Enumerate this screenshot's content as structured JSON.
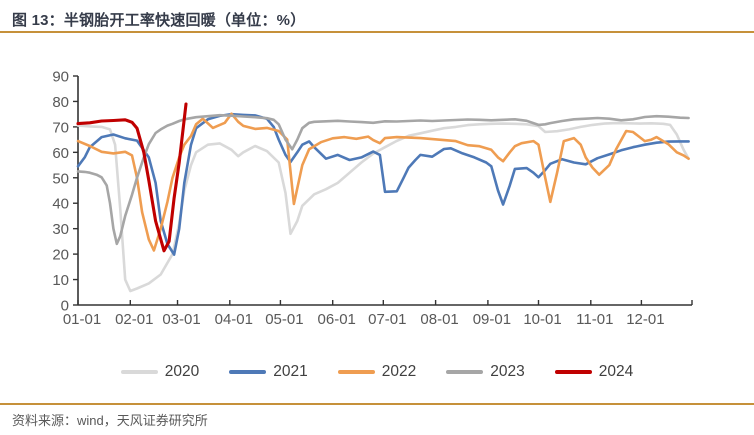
{
  "header": {
    "title": "图 13：半钢胎开工率快速回暖（单位：%）"
  },
  "footer": {
    "source": "资料来源：wind，天风证券研究所"
  },
  "colors": {
    "accent_rule": "#c6913a",
    "axis": "#333333",
    "tick_label": "#595959",
    "legend_text": "#404040"
  },
  "chart_data": {
    "type": "line",
    "title": "半钢胎开工率快速回暖",
    "unit": "%",
    "xlabel": "",
    "ylabel": "",
    "ylim": [
      0,
      90
    ],
    "ytick_step": 10,
    "grid": false,
    "legend_position": "bottom",
    "x_format": "day_of_year",
    "month_start_days": [
      1,
      32,
      60,
      91,
      121,
      152,
      182,
      213,
      244,
      274,
      305,
      335
    ],
    "x_tick_labels": [
      "01-01",
      "02-01",
      "03-01",
      "04-01",
      "05-01",
      "06-01",
      "07-01",
      "08-01",
      "09-01",
      "10-01",
      "11-01",
      "12-01"
    ],
    "series": [
      {
        "name": "2020",
        "color": "#d9d9d9",
        "points": [
          [
            1,
            70.5
          ],
          [
            8,
            70.2
          ],
          [
            15,
            70
          ],
          [
            20,
            69
          ],
          [
            23,
            63
          ],
          [
            26,
            38
          ],
          [
            29,
            10
          ],
          [
            32,
            5.5
          ],
          [
            36,
            6.5
          ],
          [
            43,
            8.5
          ],
          [
            50,
            12
          ],
          [
            57,
            20
          ],
          [
            61,
            32
          ],
          [
            64,
            45
          ],
          [
            68,
            55
          ],
          [
            71,
            60
          ],
          [
            78,
            63
          ],
          [
            85,
            63.5
          ],
          [
            92,
            61
          ],
          [
            96,
            58.5
          ],
          [
            99,
            60
          ],
          [
            106,
            62.5
          ],
          [
            113,
            60.5
          ],
          [
            120,
            56
          ],
          [
            124,
            44
          ],
          [
            127,
            28
          ],
          [
            131,
            33
          ],
          [
            134,
            39
          ],
          [
            141,
            43.5
          ],
          [
            148,
            45.5
          ],
          [
            155,
            48
          ],
          [
            162,
            52
          ],
          [
            169,
            56
          ],
          [
            176,
            59.5
          ],
          [
            183,
            62
          ],
          [
            190,
            64.5
          ],
          [
            197,
            66.5
          ],
          [
            204,
            67.5
          ],
          [
            211,
            68.5
          ],
          [
            218,
            69.5
          ],
          [
            225,
            70
          ],
          [
            232,
            70.7
          ],
          [
            239,
            71
          ],
          [
            246,
            71.2
          ],
          [
            253,
            71.3
          ],
          [
            260,
            71.2
          ],
          [
            267,
            71
          ],
          [
            274,
            70.3
          ],
          [
            278,
            68
          ],
          [
            285,
            68.3
          ],
          [
            292,
            69
          ],
          [
            299,
            70
          ],
          [
            306,
            70.8
          ],
          [
            313,
            71.3
          ],
          [
            320,
            71.5
          ],
          [
            327,
            71.4
          ],
          [
            334,
            71.3
          ],
          [
            341,
            71.4
          ],
          [
            348,
            71.2
          ],
          [
            352,
            70.8
          ],
          [
            356,
            67
          ],
          [
            360,
            61
          ],
          [
            363,
            57.5
          ]
        ]
      },
      {
        "name": "2021",
        "color": "#4e79b7",
        "points": [
          [
            1,
            54.5
          ],
          [
            5,
            58
          ],
          [
            8,
            62
          ],
          [
            15,
            66
          ],
          [
            22,
            67
          ],
          [
            29,
            65.5
          ],
          [
            36,
            64.6
          ],
          [
            43,
            58
          ],
          [
            47,
            48
          ],
          [
            50,
            33
          ],
          [
            54,
            24
          ],
          [
            58,
            19.8
          ],
          [
            61,
            30
          ],
          [
            64,
            48
          ],
          [
            68,
            63
          ],
          [
            71,
            69.5
          ],
          [
            78,
            73
          ],
          [
            85,
            74.3
          ],
          [
            92,
            75
          ],
          [
            99,
            74.7
          ],
          [
            106,
            74.5
          ],
          [
            113,
            73.2
          ],
          [
            117,
            70
          ],
          [
            120,
            65
          ],
          [
            124,
            59
          ],
          [
            127,
            56.2
          ],
          [
            131,
            60
          ],
          [
            134,
            63
          ],
          [
            138,
            64.3
          ],
          [
            141,
            62
          ],
          [
            148,
            57.5
          ],
          [
            155,
            59
          ],
          [
            162,
            57
          ],
          [
            169,
            58
          ],
          [
            176,
            60.3
          ],
          [
            180,
            59
          ],
          [
            183,
            44.5
          ],
          [
            190,
            44.7
          ],
          [
            194,
            50
          ],
          [
            197,
            54
          ],
          [
            201,
            57
          ],
          [
            204,
            59
          ],
          [
            211,
            58.3
          ],
          [
            218,
            61.3
          ],
          [
            222,
            61.6
          ],
          [
            229,
            59.6
          ],
          [
            236,
            58
          ],
          [
            243,
            56
          ],
          [
            246,
            54.5
          ],
          [
            250,
            45
          ],
          [
            253,
            39.5
          ],
          [
            257,
            47
          ],
          [
            260,
            53.5
          ],
          [
            267,
            53.8
          ],
          [
            271,
            52
          ],
          [
            274,
            50.2
          ],
          [
            278,
            53
          ],
          [
            281,
            55.5
          ],
          [
            288,
            57.3
          ],
          [
            295,
            56
          ],
          [
            302,
            55.3
          ],
          [
            309,
            57.7
          ],
          [
            316,
            59.2
          ],
          [
            323,
            60.8
          ],
          [
            330,
            62
          ],
          [
            337,
            63
          ],
          [
            344,
            63.8
          ],
          [
            351,
            64.2
          ],
          [
            358,
            64.3
          ],
          [
            363,
            64.3
          ]
        ]
      },
      {
        "name": "2022",
        "color": "#ef9d51",
        "points": [
          [
            1,
            64.4
          ],
          [
            8,
            62.5
          ],
          [
            15,
            60.2
          ],
          [
            22,
            59.6
          ],
          [
            29,
            60.2
          ],
          [
            33,
            58.8
          ],
          [
            36,
            50
          ],
          [
            39,
            36.5
          ],
          [
            43,
            25.8
          ],
          [
            46,
            21.4
          ],
          [
            50,
            30
          ],
          [
            54,
            40.5
          ],
          [
            57,
            50
          ],
          [
            61,
            58
          ],
          [
            64,
            63
          ],
          [
            68,
            66.4
          ],
          [
            71,
            71
          ],
          [
            75,
            73.2
          ],
          [
            81,
            69.6
          ],
          [
            88,
            71.6
          ],
          [
            92,
            75.2
          ],
          [
            96,
            72
          ],
          [
            99,
            70.4
          ],
          [
            106,
            69.2
          ],
          [
            113,
            69.6
          ],
          [
            120,
            68.4
          ],
          [
            125,
            65
          ],
          [
            129,
            39.7
          ],
          [
            134,
            55
          ],
          [
            138,
            61.2
          ],
          [
            145,
            64
          ],
          [
            152,
            65.5
          ],
          [
            159,
            66
          ],
          [
            166,
            65.3
          ],
          [
            173,
            66.2
          ],
          [
            176,
            64.8
          ],
          [
            180,
            63.6
          ],
          [
            183,
            65.6
          ],
          [
            190,
            66
          ],
          [
            197,
            65.8
          ],
          [
            204,
            65.6
          ],
          [
            211,
            65.2
          ],
          [
            218,
            64.8
          ],
          [
            225,
            64.4
          ],
          [
            232,
            62.8
          ],
          [
            239,
            62.4
          ],
          [
            246,
            61
          ],
          [
            250,
            58
          ],
          [
            253,
            56.5
          ],
          [
            257,
            60
          ],
          [
            260,
            62.4
          ],
          [
            264,
            63.6
          ],
          [
            271,
            64.4
          ],
          [
            274,
            63
          ],
          [
            278,
            50
          ],
          [
            281,
            40.5
          ],
          [
            285,
            52
          ],
          [
            289,
            64.4
          ],
          [
            295,
            65.6
          ],
          [
            299,
            63
          ],
          [
            302,
            58
          ],
          [
            306,
            54
          ],
          [
            310,
            51.2
          ],
          [
            316,
            55
          ],
          [
            320,
            61.2
          ],
          [
            326,
            68.4
          ],
          [
            330,
            68
          ],
          [
            337,
            64.4
          ],
          [
            341,
            65
          ],
          [
            344,
            66
          ],
          [
            351,
            63.2
          ],
          [
            356,
            60
          ],
          [
            360,
            58.8
          ],
          [
            363,
            57.5
          ]
        ]
      },
      {
        "name": "2023",
        "color": "#a6a6a6",
        "points": [
          [
            1,
            52.5
          ],
          [
            5,
            52.3
          ],
          [
            8,
            52
          ],
          [
            12,
            51.2
          ],
          [
            15,
            50.2
          ],
          [
            18,
            47
          ],
          [
            20,
            40
          ],
          [
            22,
            30
          ],
          [
            24,
            24
          ],
          [
            26,
            27
          ],
          [
            29,
            35
          ],
          [
            33,
            43.3
          ],
          [
            36,
            50
          ],
          [
            40,
            58
          ],
          [
            43,
            63.2
          ],
          [
            47,
            67.6
          ],
          [
            50,
            69
          ],
          [
            54,
            70.5
          ],
          [
            57,
            71.2
          ],
          [
            61,
            72.3
          ],
          [
            64,
            73
          ],
          [
            71,
            73.8
          ],
          [
            78,
            74.2
          ],
          [
            85,
            74.6
          ],
          [
            92,
            74.4
          ],
          [
            99,
            74.1
          ],
          [
            106,
            73.8
          ],
          [
            113,
            73.4
          ],
          [
            117,
            72.8
          ],
          [
            120,
            71
          ],
          [
            124,
            65
          ],
          [
            128,
            61.2
          ],
          [
            131,
            65
          ],
          [
            134,
            69.5
          ],
          [
            138,
            71.6
          ],
          [
            141,
            72
          ],
          [
            148,
            72.2
          ],
          [
            155,
            72.4
          ],
          [
            162,
            72.1
          ],
          [
            169,
            71.9
          ],
          [
            176,
            71.6
          ],
          [
            183,
            72.2
          ],
          [
            190,
            72.1
          ],
          [
            197,
            72.3
          ],
          [
            204,
            72.5
          ],
          [
            211,
            72.3
          ],
          [
            218,
            72.5
          ],
          [
            225,
            72.7
          ],
          [
            232,
            72.9
          ],
          [
            239,
            72.8
          ],
          [
            246,
            72.6
          ],
          [
            253,
            72.8
          ],
          [
            260,
            73
          ],
          [
            267,
            72.4
          ],
          [
            271,
            71.5
          ],
          [
            274,
            70.8
          ],
          [
            278,
            71
          ],
          [
            281,
            71.5
          ],
          [
            288,
            72.3
          ],
          [
            295,
            73
          ],
          [
            302,
            73.2
          ],
          [
            309,
            73.5
          ],
          [
            316,
            73.2
          ],
          [
            323,
            72.6
          ],
          [
            330,
            73
          ],
          [
            337,
            73.9
          ],
          [
            344,
            74.2
          ],
          [
            351,
            74
          ],
          [
            358,
            73.6
          ],
          [
            363,
            73.5
          ]
        ]
      },
      {
        "name": "2024",
        "color": "#c00000",
        "points": [
          [
            1,
            71.3
          ],
          [
            8,
            71.6
          ],
          [
            15,
            72.3
          ],
          [
            22,
            72.5
          ],
          [
            29,
            72.8
          ],
          [
            33,
            71.8
          ],
          [
            36,
            69.5
          ],
          [
            40,
            60
          ],
          [
            43,
            49
          ],
          [
            47,
            33
          ],
          [
            52,
            21.3
          ],
          [
            55,
            25
          ],
          [
            58,
            42
          ],
          [
            61,
            56
          ],
          [
            65,
            79
          ]
        ]
      }
    ]
  }
}
